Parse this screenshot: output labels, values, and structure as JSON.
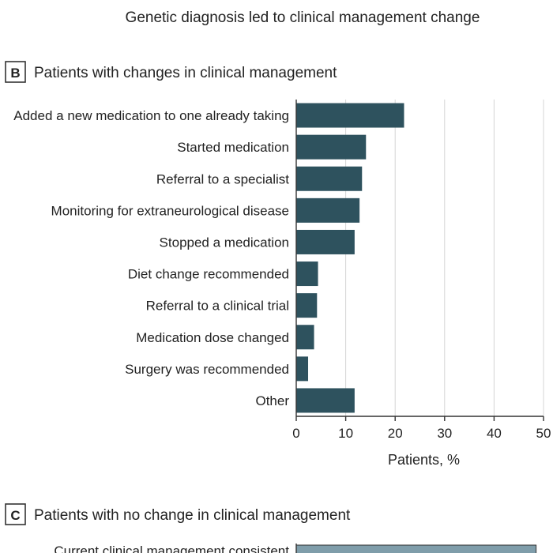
{
  "header": {
    "title": "Genetic diagnosis led to clinical management change"
  },
  "panel_b": {
    "letter": "B",
    "title": "Patients with changes in clinical management"
  },
  "panel_c": {
    "letter": "C",
    "title": "Patients with no change in clinical management",
    "first_row_label": "Current clinical management consistent"
  },
  "colors": {
    "bar_b": "#2e525e",
    "bar_c": "#7f9daa",
    "grid": "#d4d4d4",
    "axis": "#333333",
    "text": "#222222"
  },
  "chart_data": [
    {
      "type": "bar",
      "orientation": "horizontal",
      "categories": [
        "Added a new medication to one already taking",
        "Started medication",
        "Referral to a specialist",
        "Monitoring for extraneurological disease",
        "Stopped a medication",
        "Diet change recommended",
        "Referral to a clinical trial",
        "Medication dose changed",
        "Surgery was recommended",
        "Other"
      ],
      "values": [
        21.8,
        14.1,
        13.3,
        12.8,
        11.8,
        4.4,
        4.2,
        3.6,
        2.4,
        11.8
      ],
      "xlabel": "Patients, %",
      "xlim": [
        0,
        50
      ],
      "xticks": [
        0,
        10,
        20,
        30,
        40,
        50
      ],
      "grid": true
    },
    {
      "type": "bar",
      "orientation": "horizontal",
      "categories": [
        "Current clinical management consistent"
      ],
      "values": [
        48.5
      ],
      "xlim": [
        0,
        50
      ]
    }
  ]
}
